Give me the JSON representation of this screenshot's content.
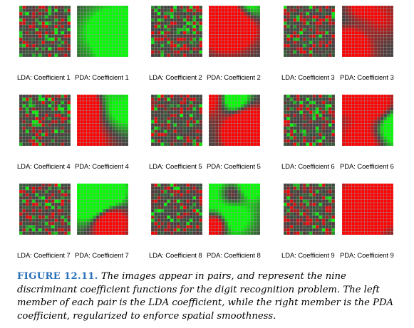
{
  "figure": {
    "panels": [
      {
        "lda_label": "LDA: Coefficient 1",
        "pda_label": "PDA: Coefficient 1"
      },
      {
        "lda_label": "LDA: Coefficient 2",
        "pda_label": "PDA: Coefficient 2"
      },
      {
        "lda_label": "LDA: Coefficient 3",
        "pda_label": "PDA: Coefficient 3"
      },
      {
        "lda_label": "LDA: Coefficient 4",
        "pda_label": "PDA: Coefficient 4"
      },
      {
        "lda_label": "LDA: Coefficient 5",
        "pda_label": "PDA: Coefficient 5"
      },
      {
        "lda_label": "LDA: Coefficient 6",
        "pda_label": "PDA: Coefficient 6"
      },
      {
        "lda_label": "LDA: Coefficient 7",
        "pda_label": "PDA: Coefficient 7"
      },
      {
        "lda_label": "LDA: Coefficient 8",
        "pda_label": "PDA: Coefficient 8"
      },
      {
        "lda_label": "LDA: Coefficient 9",
        "pda_label": "PDA: Coefficient 9"
      }
    ],
    "colors": {
      "positive": "#ff0000",
      "negative": "#00ff00",
      "neutral": "#404040"
    }
  },
  "caption": {
    "label": "FIGURE 12.11.",
    "text": "The images appear in pairs, and represent the nine discriminant coefficient functions for the digit recognition problem. The left member of each pair is the LDA coefficient, while the right member is the PDA coefficient, regularized to enforce spatial smoothness."
  }
}
